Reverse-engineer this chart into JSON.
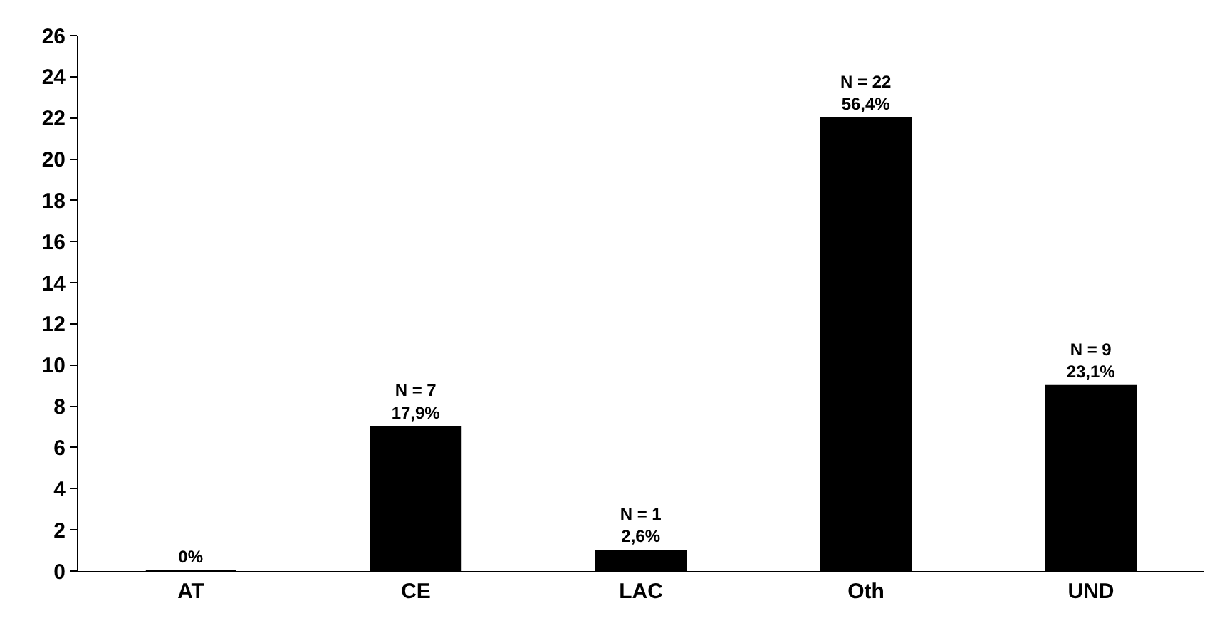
{
  "chart_data": {
    "type": "bar",
    "categories": [
      "AT",
      "CE",
      "LAC",
      "Oth",
      "UND"
    ],
    "values": [
      0,
      7,
      1,
      22,
      9
    ],
    "color": "#000000",
    "value_labels": [
      "0%",
      "N = 7\n17,9%",
      "N = 1\n2,6%",
      "N = 22\n56,4%",
      "N = 9\n23,1%"
    ],
    "ylim": [
      0,
      26
    ],
    "yticks": [
      0,
      2,
      4,
      6,
      8,
      10,
      12,
      14,
      16,
      18,
      20,
      22,
      24,
      26
    ],
    "legend": false
  }
}
